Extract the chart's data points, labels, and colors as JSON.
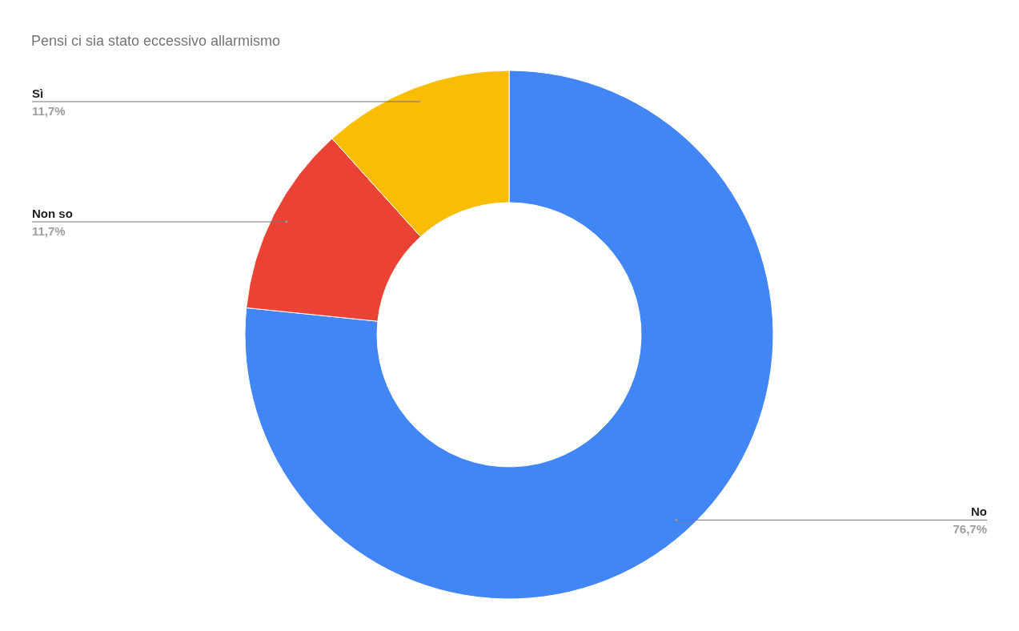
{
  "chart_data": {
    "type": "donut",
    "title": "Pensi ci sia stato eccessivo allarmismo",
    "categories": [
      "No",
      "Non so",
      "Sì"
    ],
    "values": [
      76.7,
      11.7,
      11.7
    ],
    "colors": [
      "#4285f4",
      "#ea4335",
      "#fbbc04"
    ],
    "value_labels": [
      "76,7%",
      "11,7%",
      "11,7%"
    ]
  }
}
